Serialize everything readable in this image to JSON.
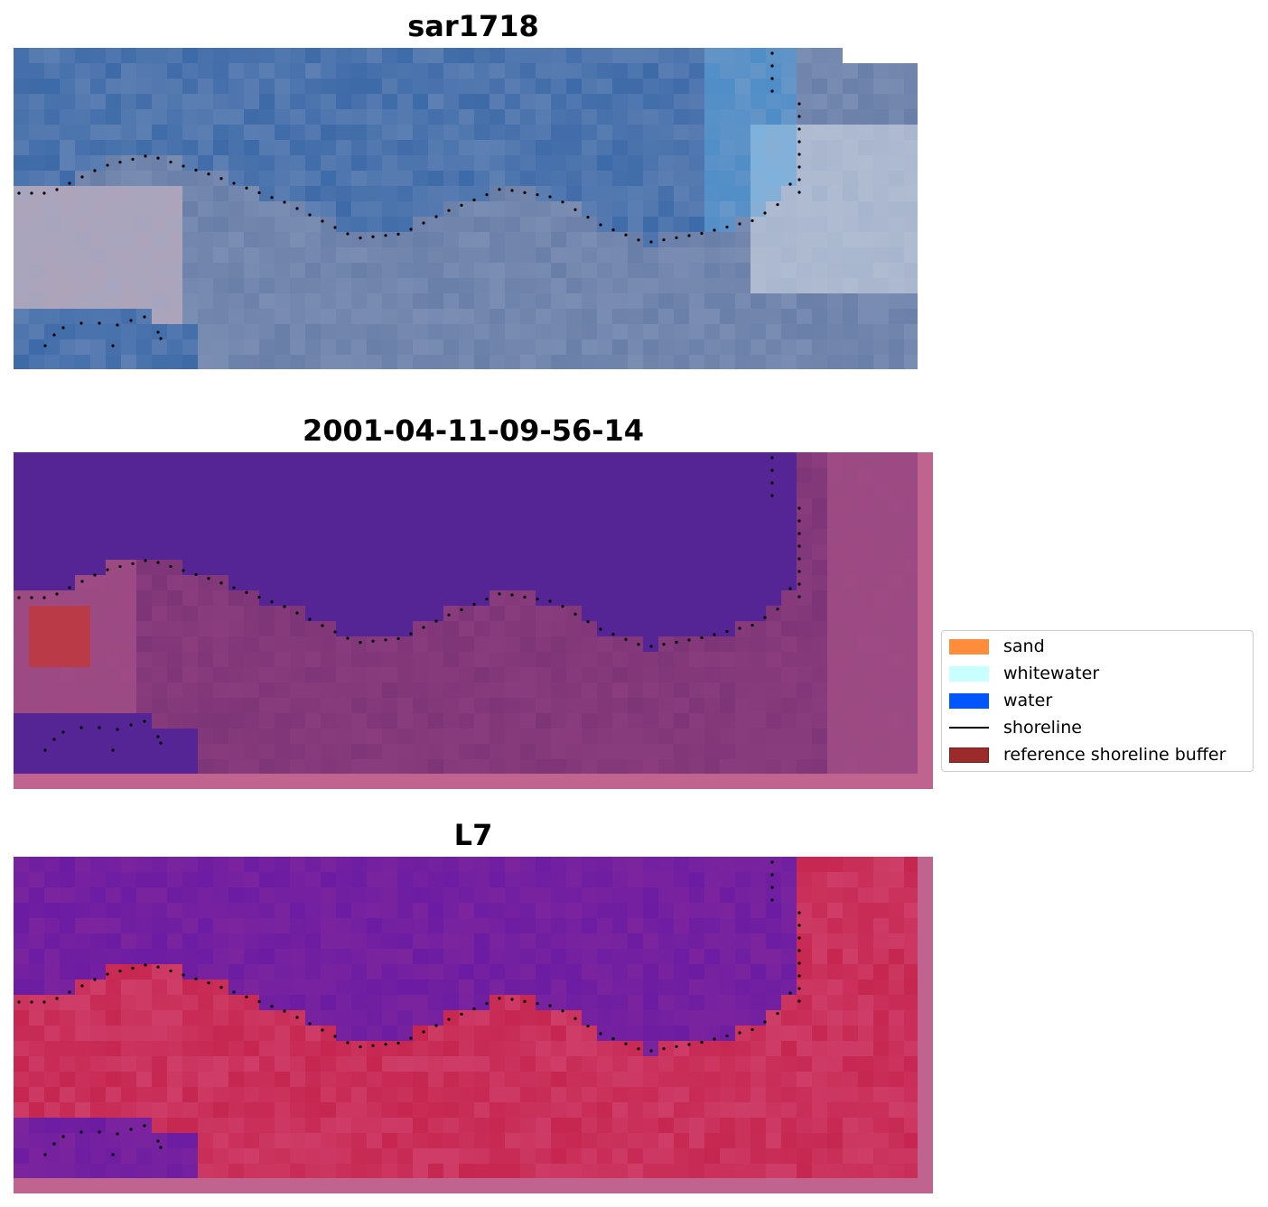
{
  "panels": [
    {
      "title": "sar1718",
      "kind": "rgb"
    },
    {
      "title": "2001-04-11-09-56-14",
      "kind": "classification"
    },
    {
      "title": "L7",
      "kind": "mndwi"
    }
  ],
  "legend": {
    "items": [
      {
        "label": "sand",
        "color": "#ff8c3a",
        "type": "patch"
      },
      {
        "label": "whitewater",
        "color": "#c8ffff",
        "type": "patch"
      },
      {
        "label": "water",
        "color": "#0055ff",
        "type": "patch"
      },
      {
        "label": "shoreline",
        "color": "#000000",
        "type": "line"
      },
      {
        "label": "reference shoreline buffer",
        "color": "#9b2a2a",
        "type": "patch"
      }
    ]
  },
  "colors": {
    "rgb_water": "#3d6aa8",
    "rgb_land": "#6a7fa8",
    "rgb_bright": "#e8eef2",
    "class_water": "#552596",
    "class_land": "#7e3577",
    "class_border": "#c0638f",
    "class_buffer": "#bb3a48",
    "mndwi_water": "#7c249e",
    "mndwi_land": "#c62650",
    "mndwi_border": "#c0638f",
    "shoreline_dot": "#000000"
  }
}
